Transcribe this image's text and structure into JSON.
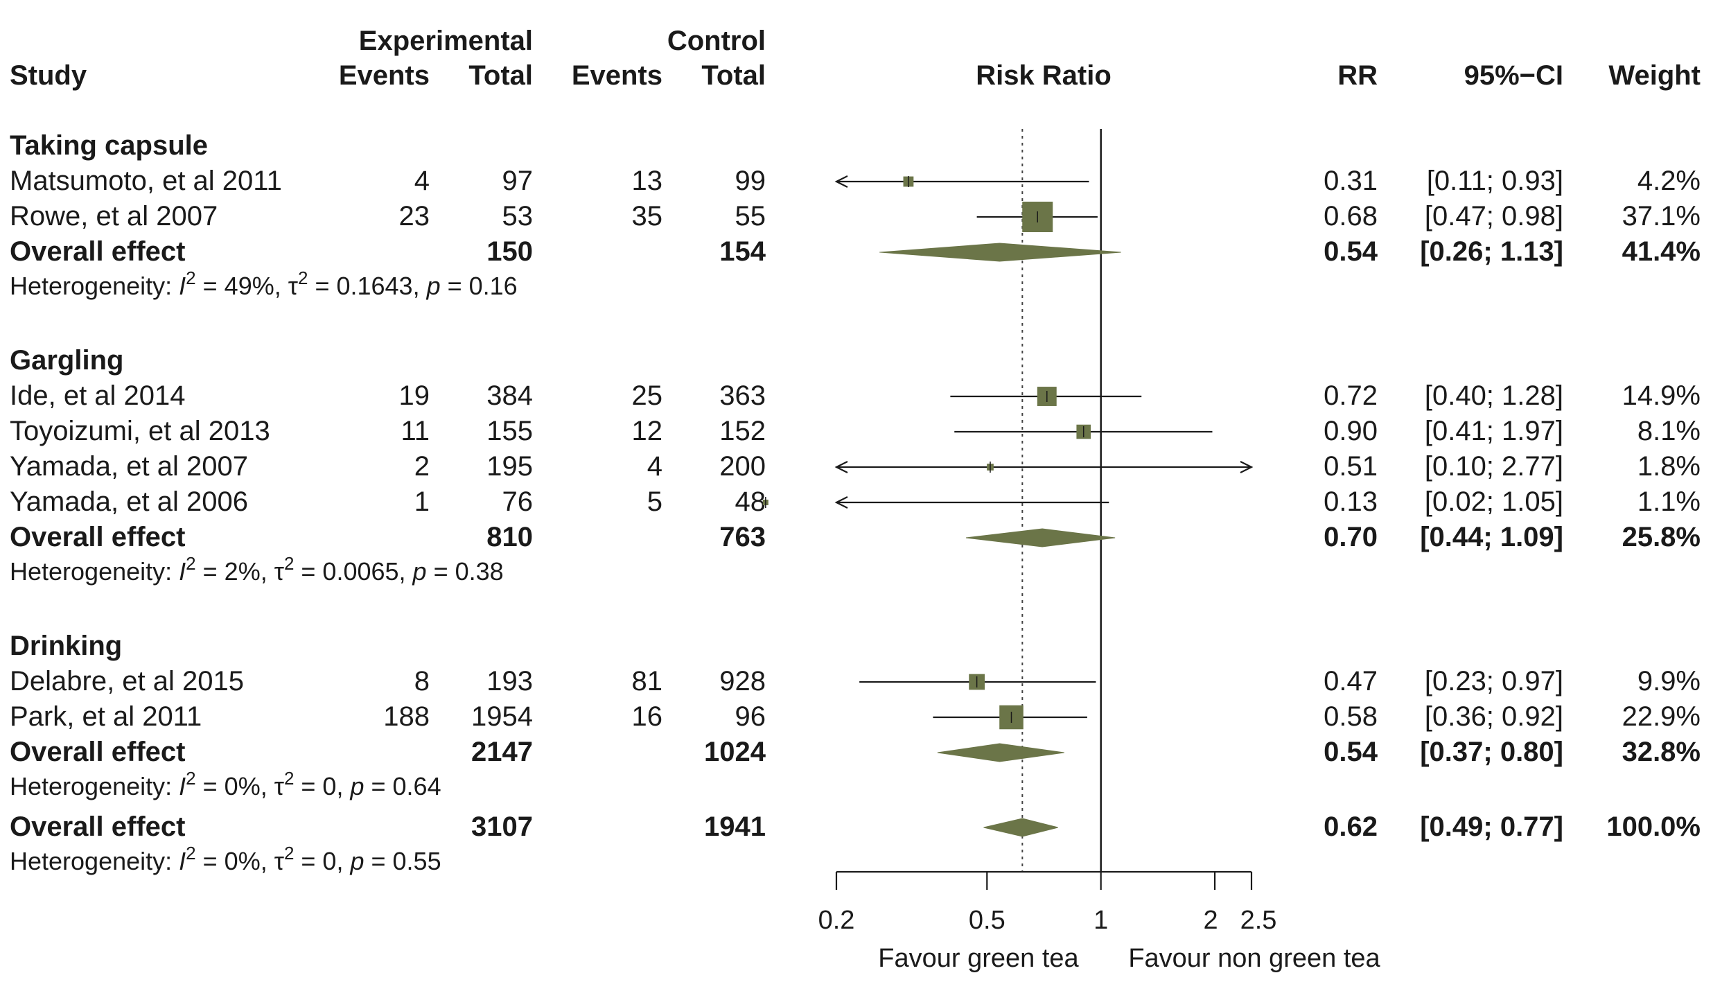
{
  "chart_data": {
    "type": "forest",
    "title": "Risk Ratio",
    "header": {
      "study": "Study",
      "experimental": "Experimental",
      "control": "Control",
      "events": "Events",
      "total": "Total",
      "plot": "Risk Ratio",
      "rr": "RR",
      "ci": "95%−CI",
      "weight": "Weight"
    },
    "groups": [
      {
        "name": "Taking capsule",
        "studies": [
          {
            "study": "Matsumoto, et al 2011",
            "e_events": "4",
            "e_total": "97",
            "c_events": "13",
            "c_total": "99",
            "rr": 0.31,
            "lo": 0.11,
            "hi": 0.93,
            "rr_text": "0.31",
            "ci_text": "[0.11; 0.93]",
            "weight": 4.2,
            "weight_text": "4.2%"
          },
          {
            "study": "Rowe, et al 2007",
            "e_events": "23",
            "e_total": "53",
            "c_events": "35",
            "c_total": "55",
            "rr": 0.68,
            "lo": 0.47,
            "hi": 0.98,
            "rr_text": "0.68",
            "ci_text": "[0.47; 0.98]",
            "weight": 37.1,
            "weight_text": "37.1%"
          }
        ],
        "overall": {
          "label": "Overall effect",
          "e_total": "150",
          "c_total": "154",
          "rr": 0.54,
          "lo": 0.26,
          "hi": 1.13,
          "rr_text": "0.54",
          "ci_text": "[0.26; 1.13]",
          "weight_text": "41.4%"
        },
        "het": {
          "prefix": "Heterogeneity: ",
          "I": "I",
          "I2": "2",
          "Ival": " = 49%, ",
          "tau": "τ",
          "tau2": "2",
          "tauval": " = 0.1643, ",
          "p": "p",
          "pval": " = 0.16"
        }
      },
      {
        "name": "Gargling",
        "studies": [
          {
            "study": "Ide, et al 2014",
            "e_events": "19",
            "e_total": "384",
            "c_events": "25",
            "c_total": "363",
            "rr": 0.72,
            "lo": 0.4,
            "hi": 1.28,
            "rr_text": "0.72",
            "ci_text": "[0.40; 1.28]",
            "weight": 14.9,
            "weight_text": "14.9%"
          },
          {
            "study": "Toyoizumi, et al 2013",
            "e_events": "11",
            "e_total": "155",
            "c_events": "12",
            "c_total": "152",
            "rr": 0.9,
            "lo": 0.41,
            "hi": 1.97,
            "rr_text": "0.90",
            "ci_text": "[0.41; 1.97]",
            "weight": 8.1,
            "weight_text": "8.1%"
          },
          {
            "study": "Yamada, et al 2007",
            "e_events": "2",
            "e_total": "195",
            "c_events": "4",
            "c_total": "200",
            "rr": 0.51,
            "lo": 0.1,
            "hi": 2.77,
            "rr_text": "0.51",
            "ci_text": "[0.10; 2.77]",
            "weight": 1.8,
            "weight_text": "1.8%"
          },
          {
            "study": "Yamada, et al 2006",
            "e_events": "1",
            "e_total": "76",
            "c_events": "5",
            "c_total": "48",
            "rr": 0.13,
            "lo": 0.02,
            "hi": 1.05,
            "rr_text": "0.13",
            "ci_text": "[0.02; 1.05]",
            "weight": 1.1,
            "weight_text": "1.1%"
          }
        ],
        "overall": {
          "label": "Overall effect",
          "e_total": "810",
          "c_total": "763",
          "rr": 0.7,
          "lo": 0.44,
          "hi": 1.09,
          "rr_text": "0.70",
          "ci_text": "[0.44; 1.09]",
          "weight_text": "25.8%"
        },
        "het": {
          "prefix": "Heterogeneity: ",
          "I": "I",
          "I2": "2",
          "Ival": " = 2%, ",
          "tau": "τ",
          "tau2": "2",
          "tauval": " = 0.0065, ",
          "p": "p",
          "pval": " = 0.38"
        }
      },
      {
        "name": "Drinking",
        "studies": [
          {
            "study": "Delabre, et al 2015",
            "e_events": "8",
            "e_total": "193",
            "c_events": "81",
            "c_total": "928",
            "rr": 0.47,
            "lo": 0.23,
            "hi": 0.97,
            "rr_text": "0.47",
            "ci_text": "[0.23; 0.97]",
            "weight": 9.9,
            "weight_text": "9.9%"
          },
          {
            "study": "Park, et al 2011",
            "e_events": "188",
            "e_total": "1954",
            "c_events": "16",
            "c_total": "96",
            "rr": 0.58,
            "lo": 0.36,
            "hi": 0.92,
            "rr_text": "0.58",
            "ci_text": "[0.36; 0.92]",
            "weight": 22.9,
            "weight_text": "22.9%"
          }
        ],
        "overall": {
          "label": "Overall effect",
          "e_total": "2147",
          "c_total": "1024",
          "rr": 0.54,
          "lo": 0.37,
          "hi": 0.8,
          "rr_text": "0.54",
          "ci_text": "[0.37; 0.80]",
          "weight_text": "32.8%"
        },
        "het": {
          "prefix": "Heterogeneity: ",
          "I": "I",
          "I2": "2",
          "Ival": " = 0%, ",
          "tau": "τ",
          "tau2": "2",
          "tauval": " = 0, ",
          "p": "p",
          "pval": " = 0.64"
        }
      }
    ],
    "overall": {
      "label": "Overall effect",
      "e_total": "3107",
      "c_total": "1941",
      "rr": 0.62,
      "lo": 0.49,
      "hi": 0.77,
      "rr_text": "0.62",
      "ci_text": "[0.49; 0.77]",
      "weight_text": "100.0%"
    },
    "overall_het": {
      "prefix": "Heterogeneity: ",
      "I": "I",
      "I2": "2",
      "Ival": " = 0%, ",
      "tau": "τ",
      "tau2": "2",
      "tauval": " = 0, ",
      "p": "p",
      "pval": " = 0.55"
    },
    "x_axis": {
      "scale": "log",
      "range": [
        0.2,
        2.5
      ],
      "ticks": [
        0.2,
        0.5,
        1,
        2,
        2.5
      ],
      "tick_labels": [
        "0.2",
        "0.5",
        "1",
        "2",
        "2.5"
      ],
      "reference_line": 1,
      "pooled_reference_line": 0.62
    },
    "favour_left": "Favour green tea",
    "favour_right": "Favour non green tea",
    "colors": {
      "box": "#6b7548",
      "diamond": "#6b7548",
      "line": "#1a1a1a"
    }
  }
}
